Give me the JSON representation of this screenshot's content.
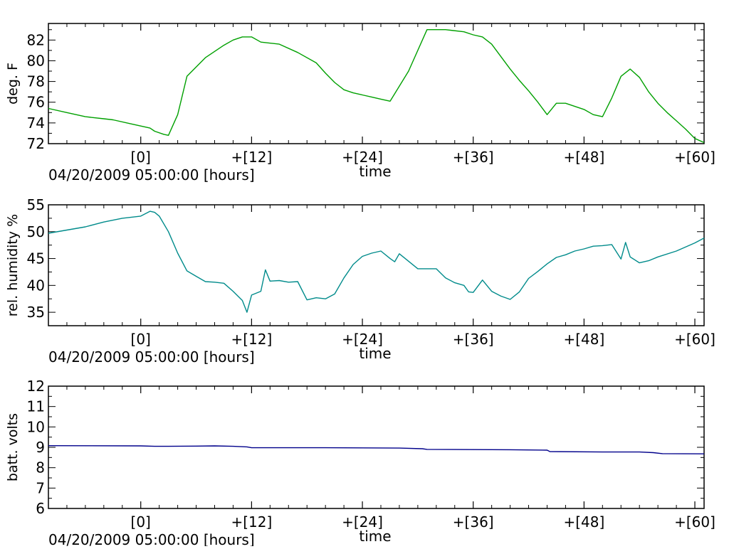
{
  "chart_data": [
    {
      "type": "line",
      "ylabel": "deg. F",
      "xlabel": "time",
      "x_origin_label": "04/20/2009 05:00:00 [hours]",
      "ylim": [
        72,
        83.6
      ],
      "xlim": [
        -10,
        61
      ],
      "x_ticks": [
        0,
        12,
        24,
        36,
        48,
        60
      ],
      "x_tick_labels": [
        "[0]",
        "+[12]",
        "+[24]",
        "+[36]",
        "+[48]",
        "+[60]"
      ],
      "y_ticks": [
        72,
        74,
        76,
        78,
        80,
        82
      ],
      "grid": false,
      "color": "#00a000",
      "x": [
        -10,
        -8,
        -6,
        -4,
        -3,
        -1,
        0,
        1,
        1.5,
        2.5,
        3,
        4,
        5,
        7,
        9,
        10,
        11,
        12,
        13,
        15,
        17,
        19,
        20,
        21,
        22,
        23,
        24,
        25,
        26,
        27,
        29,
        31,
        33,
        35,
        36,
        37,
        38,
        39,
        40,
        41,
        42,
        43,
        44,
        45,
        46,
        47,
        48,
        49,
        50,
        51,
        52,
        53,
        54,
        55,
        56,
        57,
        58,
        59,
        60,
        61
      ],
      "y": [
        75.4,
        75.0,
        74.6,
        74.4,
        74.3,
        73.9,
        73.7,
        73.5,
        73.2,
        72.9,
        72.8,
        74.8,
        78.5,
        80.3,
        81.5,
        82.0,
        82.3,
        82.3,
        81.8,
        81.6,
        80.8,
        79.8,
        78.8,
        77.9,
        77.2,
        76.9,
        76.7,
        76.5,
        76.3,
        76.1,
        79.0,
        83.0,
        83.0,
        82.8,
        82.5,
        82.3,
        81.6,
        80.4,
        79.2,
        78.1,
        77.1,
        76.0,
        74.8,
        75.9,
        75.9,
        75.6,
        75.3,
        74.8,
        74.6,
        76.4,
        78.5,
        79.2,
        78.4,
        77.0,
        75.9,
        75.0,
        74.2,
        73.4,
        72.5,
        72.1
      ]
    },
    {
      "type": "line",
      "ylabel": "rel. humidity %",
      "xlabel": "time",
      "x_origin_label": "04/20/2009 05:00:00 [hours]",
      "ylim": [
        32.5,
        55
      ],
      "xlim": [
        -10,
        61
      ],
      "x_ticks": [
        0,
        12,
        24,
        36,
        48,
        60
      ],
      "x_tick_labels": [
        "[0]",
        "+[12]",
        "+[24]",
        "+[36]",
        "+[48]",
        "+[60]"
      ],
      "y_ticks": [
        35,
        40,
        45,
        50,
        55
      ],
      "grid": false,
      "color": "#008b8b",
      "x": [
        -10,
        -8,
        -6,
        -4,
        -2,
        0,
        1,
        1.5,
        2,
        3,
        4,
        5,
        6,
        7,
        8,
        9,
        10,
        11,
        11.5,
        12,
        13,
        13.5,
        14,
        15,
        16,
        17,
        18,
        19,
        20,
        21,
        22,
        23,
        24,
        25,
        26,
        27,
        27.5,
        28,
        30,
        32,
        33,
        34,
        35,
        35.5,
        36,
        37,
        38,
        39,
        40,
        41,
        42,
        43,
        44,
        45,
        46,
        47,
        48,
        49,
        50,
        51,
        52,
        52.5,
        53,
        54,
        55,
        56,
        58,
        60,
        61
      ],
      "y": [
        49.7,
        50.3,
        50.9,
        51.8,
        52.5,
        52.9,
        53.8,
        53.6,
        52.9,
        50.0,
        46.0,
        42.7,
        41.7,
        40.7,
        40.6,
        40.4,
        38.9,
        37.2,
        35.0,
        38.2,
        38.9,
        42.9,
        40.8,
        40.9,
        40.6,
        40.7,
        37.3,
        37.7,
        37.5,
        38.4,
        41.4,
        43.9,
        45.4,
        46.0,
        46.4,
        45.0,
        44.4,
        45.9,
        43.1,
        43.1,
        41.4,
        40.5,
        40.0,
        38.8,
        38.7,
        41.0,
        38.9,
        38.0,
        37.4,
        38.8,
        41.3,
        42.6,
        44.0,
        45.2,
        45.7,
        46.4,
        46.8,
        47.3,
        47.4,
        47.6,
        44.9,
        48.0,
        45.3,
        44.2,
        44.6,
        45.3,
        46.4,
        47.9,
        48.8
      ]
    },
    {
      "type": "line",
      "ylabel": "batt. volts",
      "xlabel": "time",
      "x_origin_label": "04/20/2009 05:00:00 [hours]",
      "ylim": [
        6,
        12
      ],
      "xlim": [
        -10,
        61
      ],
      "x_ticks": [
        0,
        12,
        24,
        36,
        48,
        60
      ],
      "x_tick_labels": [
        "[0]",
        "+[12]",
        "+[24]",
        "+[36]",
        "+[48]",
        "+[60]"
      ],
      "y_ticks": [
        6,
        7,
        8,
        9,
        10,
        11,
        12
      ],
      "grid": false,
      "color": "#00008b",
      "x": [
        -10,
        0,
        1.5,
        3,
        6,
        8,
        10,
        11.5,
        12,
        20,
        28,
        30.5,
        31,
        40,
        44,
        44.3,
        50,
        54,
        55.5,
        56.5,
        61
      ],
      "y": [
        9.08,
        9.07,
        9.05,
        9.05,
        9.06,
        9.07,
        9.05,
        9.02,
        8.98,
        8.98,
        8.96,
        8.93,
        8.9,
        8.88,
        8.86,
        8.79,
        8.77,
        8.77,
        8.74,
        8.69,
        8.68
      ]
    }
  ]
}
